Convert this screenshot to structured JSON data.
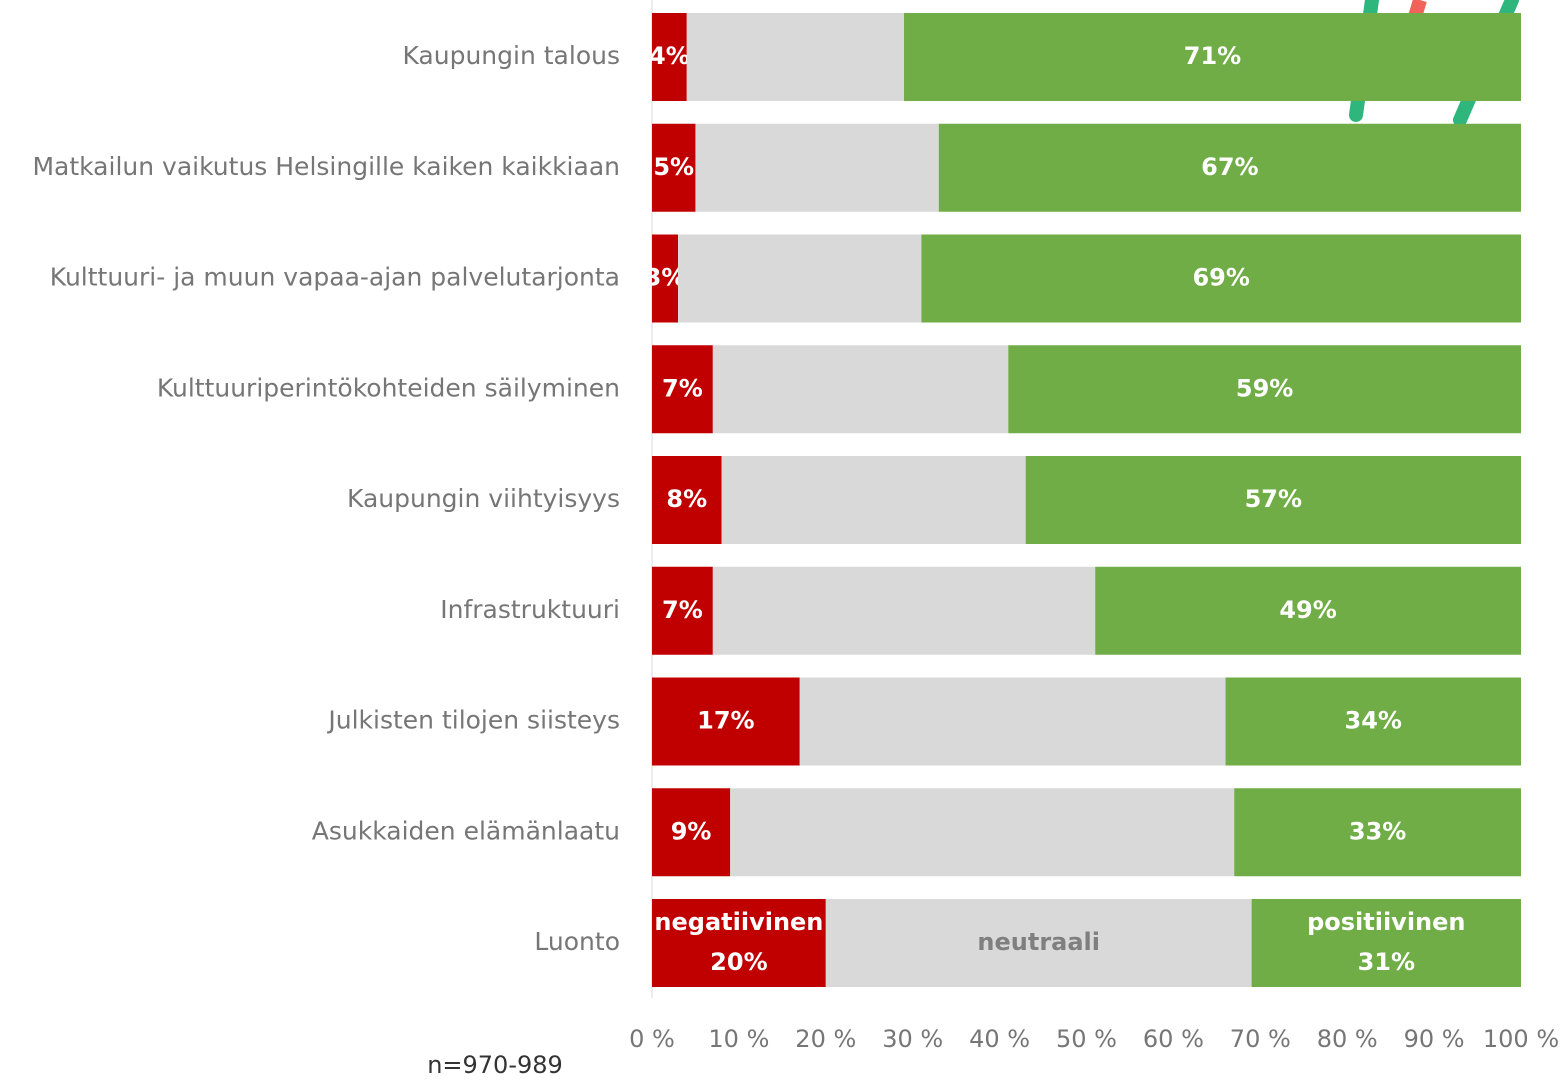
{
  "chart_data": {
    "type": "stacked_bar",
    "orientation": "horizontal",
    "categories": [
      "Kaupungin talous",
      "Matkailun vaikutus Helsingille kaiken kaikkiaan",
      "Kulttuuri- ja muun vapaa-ajan palvelutarjonta",
      "Kulttuuriperintökohteiden säilyminen",
      "Kaupungin viihtyisyys",
      "Infrastruktuuri",
      "Julkisten tilojen siisteys",
      "Asukkaiden elämänlaatu",
      "Luonto"
    ],
    "series": [
      {
        "name": "negatiivinen",
        "color": "#c00000",
        "label_color": "#ffffff",
        "values": [
          4,
          5,
          3,
          7,
          8,
          7,
          17,
          9,
          20
        ],
        "value_labels": [
          "4%",
          "5%",
          "3%",
          "7%",
          "8%",
          "7%",
          "17%",
          "9%",
          "20%"
        ]
      },
      {
        "name": "neutraali",
        "color": "#d9d9d9",
        "label_color": "#7f7f7f",
        "values": [
          25,
          28,
          28,
          34,
          35,
          44,
          49,
          58,
          49
        ]
      },
      {
        "name": "positiivinen",
        "color": "#70ad47",
        "label_color": "#ffffff",
        "values": [
          71,
          67,
          69,
          59,
          57,
          49,
          34,
          33,
          31
        ],
        "value_labels": [
          "71%",
          "67%",
          "69%",
          "59%",
          "57%",
          "49%",
          "34%",
          "33%",
          "31%"
        ]
      }
    ],
    "xlim": [
      0,
      100
    ],
    "xticks": [
      {
        "value": 0,
        "label": "0 %"
      },
      {
        "value": 10,
        "label": "10 %"
      },
      {
        "value": 20,
        "label": "20 %"
      },
      {
        "value": 30,
        "label": "30 %"
      },
      {
        "value": 40,
        "label": "40 %"
      },
      {
        "value": 50,
        "label": "50 %"
      },
      {
        "value": 60,
        "label": "60 %"
      },
      {
        "value": 70,
        "label": "70 %"
      },
      {
        "value": 80,
        "label": "80 %"
      },
      {
        "value": 90,
        "label": "90 %"
      },
      {
        "value": 100,
        "label": "100 %"
      }
    ],
    "note": "n=970-989"
  }
}
